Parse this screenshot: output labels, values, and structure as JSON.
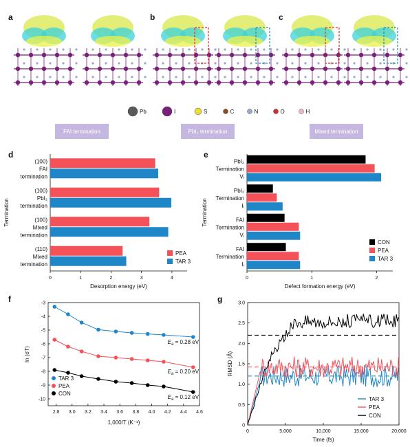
{
  "panels": {
    "a": "a",
    "b": "b",
    "c": "c",
    "d": "d",
    "e": "e",
    "f": "f",
    "g": "g"
  },
  "atoms": [
    {
      "symbol": "Pb",
      "color": "#5a5a5a"
    },
    {
      "symbol": "I",
      "color": "#7a1f7a"
    },
    {
      "symbol": "S",
      "color": "#e6e03a"
    },
    {
      "symbol": "C",
      "color": "#8a4b1c"
    },
    {
      "symbol": "N",
      "color": "#9aa7c9"
    },
    {
      "symbol": "O",
      "color": "#d62a2a"
    },
    {
      "symbol": "H",
      "color": "#e9b7c7"
    }
  ],
  "terminations": {
    "fai": "FAI termination",
    "pbi2": "PbI₂ termination",
    "mixed": "Mixed termination"
  },
  "colors": {
    "pea": "#f45158",
    "tar": "#1f86c8",
    "con": "#000000"
  },
  "chart_data": [
    {
      "id": "d",
      "type": "bar",
      "orientation": "horizontal",
      "ylabel": "Termination",
      "xlabel": "Desorption energy (eV)",
      "xlim": [
        0,
        4.5
      ],
      "xticks": [
        0,
        1,
        2,
        3,
        4
      ],
      "categories": [
        {
          "lines": [
            "(100)",
            "FAI",
            "termination"
          ]
        },
        {
          "lines": [
            "(100)",
            "PbI₂",
            "termination"
          ]
        },
        {
          "lines": [
            "(100)",
            "Mixed",
            "termination"
          ]
        },
        {
          "lines": [
            "(110)",
            "Mixed",
            "termination"
          ]
        }
      ],
      "series": [
        {
          "name": "PEA",
          "values": [
            3.45,
            3.58,
            3.26,
            2.38
          ]
        },
        {
          "name": "TAR 3",
          "values": [
            3.55,
            3.98,
            3.88,
            2.5
          ]
        }
      ],
      "legend": "bottom-right"
    },
    {
      "id": "e",
      "type": "bar",
      "orientation": "horizontal",
      "ylabel": "Termination",
      "xlabel": "Defect formation energy (eV)",
      "xlim": [
        0,
        2.25
      ],
      "xticks": [
        0,
        1,
        2
      ],
      "categories": [
        {
          "lines": [
            "PbI₂",
            "Termination",
            "Vᵢ"
          ]
        },
        {
          "lines": [
            "PbI₂",
            "Termination",
            "Iᵢ"
          ]
        },
        {
          "lines": [
            "FAI",
            "Termination",
            "Vᵢ"
          ]
        },
        {
          "lines": [
            "FAI",
            "Termination",
            "Iᵢ"
          ]
        }
      ],
      "series": [
        {
          "name": "CON",
          "values": [
            1.83,
            0.4,
            0.58,
            0.6
          ]
        },
        {
          "name": "PEA",
          "values": [
            1.97,
            0.46,
            0.8,
            0.8
          ]
        },
        {
          "name": "TAR 3",
          "values": [
            2.07,
            0.55,
            0.82,
            0.82
          ]
        }
      ],
      "legend": "bottom-right"
    },
    {
      "id": "f",
      "type": "scatter",
      "xlabel": "1,000/T (K⁻¹)",
      "ylabel": "ln (σT)",
      "xlim": [
        2.7,
        4.6
      ],
      "ylim": [
        -10.5,
        -3
      ],
      "xticks": [
        2.8,
        3.0,
        3.2,
        3.4,
        3.6,
        3.8,
        4.0,
        4.2,
        4.4,
        4.6
      ],
      "yticks": [
        -3,
        -4,
        -5,
        -6,
        -7,
        -8,
        -9,
        -10
      ],
      "series": [
        {
          "name": "TAR 3",
          "x": [
            2.78,
            2.95,
            3.12,
            3.33,
            3.55,
            3.75,
            3.95,
            4.15,
            4.52
          ],
          "y": [
            -3.3,
            -3.85,
            -4.45,
            -4.97,
            -5.1,
            -5.2,
            -5.28,
            -5.35,
            -5.5
          ]
        },
        {
          "name": "PEA",
          "x": [
            2.78,
            2.95,
            3.12,
            3.33,
            3.55,
            3.75,
            3.95,
            4.15,
            4.52
          ],
          "y": [
            -5.7,
            -6.2,
            -6.55,
            -6.9,
            -7.0,
            -7.1,
            -7.2,
            -7.3,
            -7.7
          ]
        },
        {
          "name": "CON",
          "x": [
            2.78,
            2.95,
            3.12,
            3.33,
            3.55,
            3.75,
            3.95,
            4.15,
            4.52
          ],
          "y": [
            -7.9,
            -8.1,
            -8.35,
            -8.55,
            -8.75,
            -8.85,
            -9.0,
            -9.1,
            -9.5
          ]
        }
      ],
      "annotations": [
        {
          "text": "= 0.28 eV",
          "symbol": "E",
          "sub": "a",
          "x": 4.2,
          "y": -6.0
        },
        {
          "text": "= 0.20 eV",
          "symbol": "E",
          "sub": "a",
          "x": 4.2,
          "y": -8.15
        },
        {
          "text": "= 0.12 eV",
          "symbol": "E",
          "sub": "a",
          "x": 4.2,
          "y": -10.0
        }
      ],
      "legend": "bottom-left"
    },
    {
      "id": "g",
      "type": "line",
      "xlabel": "Time (fs)",
      "ylabel": "RMSD (Å)",
      "xlim": [
        0,
        20000
      ],
      "ylim": [
        0,
        3.0
      ],
      "xticks": [
        0,
        5000,
        10000,
        15000,
        20000
      ],
      "xticklabels": [
        "0",
        "5,000",
        "10,000",
        "15,000",
        "20,000"
      ],
      "yticks": [
        0,
        0.5,
        1.0,
        1.5,
        2.0,
        2.5,
        3.0
      ],
      "yticklabels": [
        "0",
        "0.5",
        "1.0",
        "1.5",
        "2.0",
        "2.5",
        "3.0"
      ],
      "series": [
        {
          "name": "TAR 3",
          "mean": 1.2
        },
        {
          "name": "PEA",
          "mean": 1.42
        },
        {
          "name": "CON",
          "mean": 2.2
        }
      ],
      "legend": "bottom-right"
    }
  ]
}
